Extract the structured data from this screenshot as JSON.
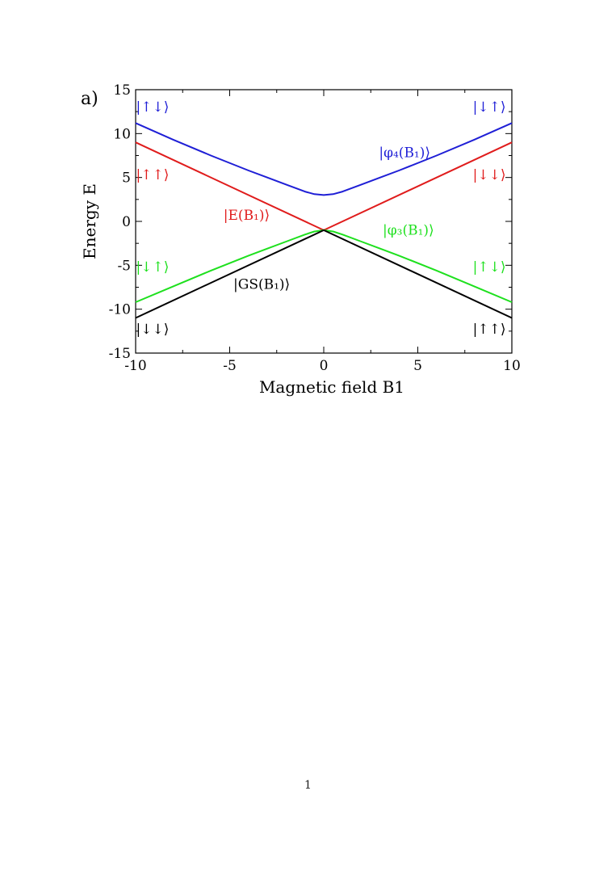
{
  "panel_label": "a)",
  "page_number": "1",
  "colors": {
    "blue": "#1f1fd6",
    "red": "#e01c1c",
    "green": "#1ee01e",
    "black": "#000000"
  },
  "chart_data": {
    "type": "line",
    "xlabel": "Magnetic field B1",
    "ylabel": "Energy E",
    "xlim": [
      -10,
      10
    ],
    "ylim": [
      -15,
      15
    ],
    "xticks": [
      -10,
      -5,
      0,
      5,
      10
    ],
    "yticks": [
      -15,
      -10,
      -5,
      0,
      5,
      10,
      15
    ],
    "grid": false,
    "series": [
      {
        "key": "phi4",
        "color_key": "blue",
        "x": [
          -10,
          -8,
          -6,
          -4,
          -3,
          -2,
          -1,
          -0.5,
          0,
          0.5,
          1,
          2,
          3,
          4,
          6,
          8,
          10
        ],
        "y": [
          11.2,
          9.3,
          7.5,
          5.8,
          5.0,
          4.2,
          3.4,
          3.1,
          3.0,
          3.1,
          3.4,
          4.2,
          5.0,
          5.8,
          7.5,
          9.3,
          11.2
        ]
      },
      {
        "key": "E",
        "color_key": "red",
        "x": [
          -10,
          0,
          10
        ],
        "y": [
          9.0,
          -1.0,
          9.0
        ]
      },
      {
        "key": "phi3",
        "color_key": "green",
        "x": [
          -10,
          -8,
          -6,
          -4,
          -3,
          -2,
          -1,
          -0.5,
          0,
          0.5,
          1,
          2,
          3,
          4,
          6,
          8,
          10
        ],
        "y": [
          -9.2,
          -7.4,
          -5.6,
          -3.9,
          -3.1,
          -2.3,
          -1.5,
          -1.15,
          -1.0,
          -1.15,
          -1.5,
          -2.3,
          -3.1,
          -3.9,
          -5.6,
          -7.4,
          -9.2
        ]
      },
      {
        "key": "GS",
        "color_key": "black",
        "x": [
          -10,
          0,
          10
        ],
        "y": [
          -11.0,
          -1.0,
          -11.0
        ]
      }
    ],
    "annotations": [
      {
        "text": "|↑↓⟩",
        "x": -9.1,
        "y": 12.5,
        "color_key": "blue",
        "anchor": "middle"
      },
      {
        "text": "|↓↑⟩",
        "x": 8.8,
        "y": 12.5,
        "color_key": "blue",
        "anchor": "middle"
      },
      {
        "text": "|↑↑⟩",
        "x": -9.1,
        "y": 4.8,
        "color_key": "red",
        "anchor": "middle"
      },
      {
        "text": "|↓↓⟩",
        "x": 8.8,
        "y": 4.8,
        "color_key": "red",
        "anchor": "middle"
      },
      {
        "text": "|↓↑⟩",
        "x": -9.1,
        "y": -5.7,
        "color_key": "green",
        "anchor": "middle"
      },
      {
        "text": "|↑↓⟩",
        "x": 8.8,
        "y": -5.7,
        "color_key": "green",
        "anchor": "middle"
      },
      {
        "text": "|↓↓⟩",
        "x": -9.1,
        "y": -12.8,
        "color_key": "black",
        "anchor": "middle"
      },
      {
        "text": "|↑↑⟩",
        "x": 8.8,
        "y": -12.8,
        "color_key": "black",
        "anchor": "middle"
      },
      {
        "text": "|φ₄(B₁)⟩",
        "x": 4.3,
        "y": 7.3,
        "color_key": "blue",
        "anchor": "middle"
      },
      {
        "text": "|E(B₁)⟩",
        "x": -4.1,
        "y": 0.2,
        "color_key": "red",
        "anchor": "middle"
      },
      {
        "text": "|φ₃(B₁)⟩",
        "x": 4.5,
        "y": -1.5,
        "color_key": "green",
        "anchor": "middle"
      },
      {
        "text": "|GS(B₁)⟩",
        "x": -3.3,
        "y": -7.7,
        "color_key": "black",
        "anchor": "middle"
      }
    ]
  }
}
